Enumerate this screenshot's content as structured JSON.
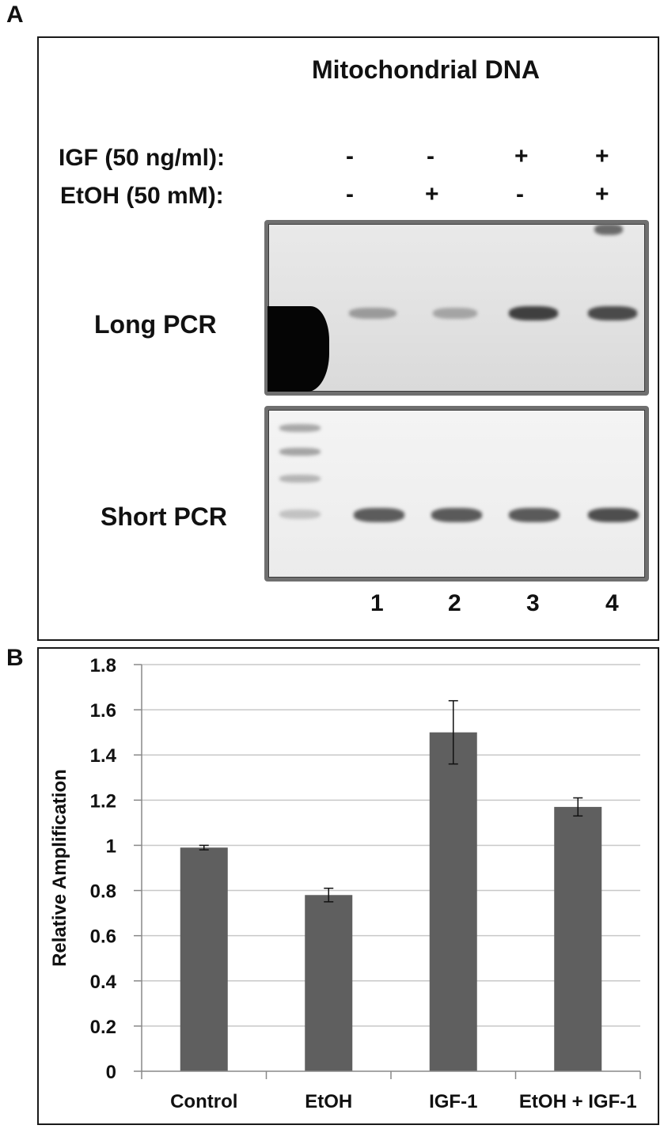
{
  "panel_a": {
    "letter": "A",
    "title": "Mitochondrial DNA",
    "conditions": [
      {
        "label": "IGF (50 ng/ml):",
        "signs": [
          "-",
          "-",
          "+",
          "+"
        ]
      },
      {
        "label": "EtOH (50 mM):",
        "signs": [
          "-",
          "+",
          "-",
          "+"
        ]
      }
    ],
    "gels": [
      {
        "label": "Long PCR"
      },
      {
        "label": "Short PCR"
      }
    ],
    "lane_numbers": [
      "1",
      "2",
      "3",
      "4"
    ]
  },
  "panel_b": {
    "letter": "B"
  },
  "chart_data": {
    "type": "bar",
    "categories": [
      "Control",
      "EtOH",
      "IGF-1",
      "EtOH + IGF-1"
    ],
    "values": [
      0.99,
      0.78,
      1.5,
      1.17
    ],
    "errors": [
      0.01,
      0.03,
      0.14,
      0.04
    ],
    "title": "",
    "xlabel": "",
    "ylabel": "Relative Amplification",
    "ylim": [
      0,
      1.8
    ],
    "yticks": [
      "0",
      "0.2",
      "0.4",
      "0.6",
      "0.8",
      "1",
      "1.2",
      "1.4",
      "1.6",
      "1.8"
    ],
    "grid": true,
    "bar_color": "#5f5f5f",
    "grid_color": "#c8c8c8"
  }
}
